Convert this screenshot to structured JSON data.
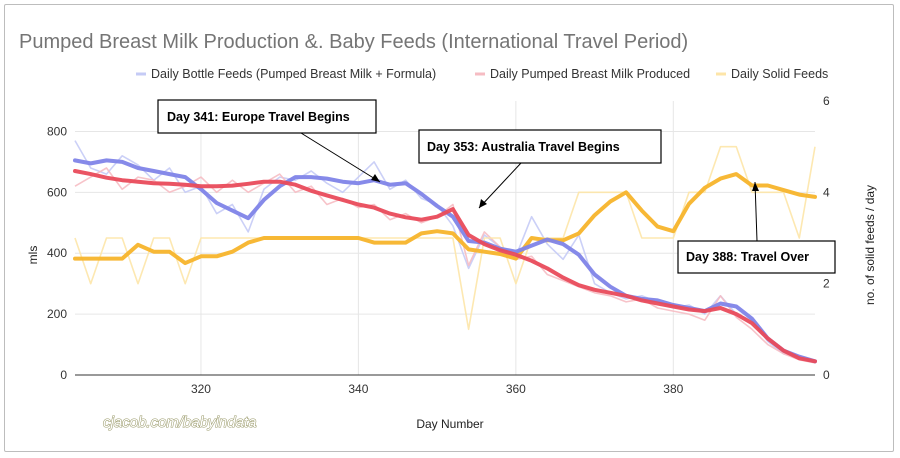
{
  "chart_data": {
    "type": "line",
    "title": "Pumped Breast Milk Production &. Baby Feeds (International Travel Period)",
    "xlabel": "Day Number",
    "ylabel": "mls",
    "y2label": "no. of solid feeds / day",
    "xlim": [
      304,
      398
    ],
    "ylim": [
      0,
      900
    ],
    "y2lim": [
      0,
      6
    ],
    "x_ticks": [
      320,
      340,
      360,
      380
    ],
    "y_ticks": [
      0,
      200,
      400,
      600,
      800
    ],
    "y2_ticks": [
      0,
      2,
      4,
      6
    ],
    "grid": true,
    "legend_position": "top",
    "series": [
      {
        "name": "Daily Bottle Feeds (Pumped Breast Milk + Formula)",
        "color": "#7f84e8",
        "raw_color": "#c5cbf6",
        "axis": "left",
        "x": [
          304,
          306,
          308,
          310,
          312,
          314,
          316,
          318,
          320,
          322,
          324,
          326,
          328,
          330,
          332,
          334,
          336,
          338,
          340,
          342,
          344,
          346,
          348,
          350,
          352,
          354,
          356,
          358,
          360,
          362,
          364,
          366,
          368,
          370,
          372,
          374,
          376,
          378,
          380,
          382,
          384,
          386,
          388,
          390,
          392,
          394,
          396,
          398
        ],
        "smooth": [
          705,
          695,
          705,
          700,
          680,
          670,
          660,
          650,
          610,
          565,
          540,
          515,
          575,
          620,
          650,
          650,
          645,
          635,
          630,
          640,
          625,
          630,
          595,
          555,
          520,
          440,
          435,
          415,
          405,
          425,
          445,
          430,
          395,
          330,
          290,
          260,
          250,
          245,
          230,
          220,
          210,
          235,
          225,
          185,
          120,
          80,
          60,
          45
        ],
        "raw": [
          770,
          680,
          660,
          720,
          690,
          640,
          680,
          600,
          620,
          530,
          560,
          470,
          610,
          650,
          640,
          670,
          630,
          600,
          650,
          700,
          610,
          640,
          580,
          560,
          490,
          350,
          460,
          420,
          390,
          520,
          430,
          380,
          460,
          300,
          270,
          250,
          260,
          240,
          220,
          230,
          200,
          260,
          200,
          180,
          110,
          70,
          60,
          40
        ]
      },
      {
        "name": "Daily Pumped Breast Milk Produced",
        "color": "#e94b5b",
        "raw_color": "#f6bcc3",
        "axis": "left",
        "x": [
          304,
          306,
          308,
          310,
          312,
          314,
          316,
          318,
          320,
          322,
          324,
          326,
          328,
          330,
          332,
          334,
          336,
          338,
          340,
          342,
          344,
          346,
          348,
          350,
          352,
          354,
          356,
          358,
          360,
          362,
          364,
          366,
          368,
          370,
          372,
          374,
          376,
          378,
          380,
          382,
          384,
          386,
          388,
          390,
          392,
          394,
          396,
          398
        ],
        "smooth": [
          670,
          660,
          648,
          640,
          635,
          630,
          628,
          625,
          620,
          620,
          622,
          628,
          635,
          635,
          625,
          605,
          590,
          575,
          560,
          550,
          530,
          518,
          510,
          520,
          545,
          460,
          430,
          410,
          395,
          375,
          350,
          320,
          295,
          280,
          270,
          260,
          245,
          235,
          225,
          215,
          210,
          220,
          200,
          170,
          120,
          80,
          55,
          45
        ],
        "raw": [
          620,
          650,
          680,
          610,
          650,
          640,
          600,
          620,
          650,
          600,
          640,
          600,
          630,
          660,
          600,
          620,
          560,
          580,
          550,
          560,
          510,
          530,
          500,
          520,
          560,
          360,
          470,
          420,
          380,
          390,
          330,
          310,
          290,
          270,
          260,
          240,
          250,
          220,
          210,
          200,
          180,
          260,
          190,
          150,
          100,
          70,
          50,
          40
        ]
      },
      {
        "name": "Daily Solid Feeds",
        "color": "#f7b42b",
        "raw_color": "#fde5a8",
        "axis": "right",
        "x": [
          304,
          306,
          308,
          310,
          312,
          314,
          316,
          318,
          320,
          322,
          324,
          326,
          328,
          330,
          332,
          334,
          336,
          338,
          340,
          342,
          344,
          346,
          348,
          350,
          352,
          354,
          356,
          358,
          360,
          362,
          364,
          366,
          368,
          370,
          372,
          374,
          376,
          378,
          380,
          382,
          384,
          386,
          388,
          390,
          392,
          394,
          396,
          398
        ],
        "smooth": [
          2.55,
          2.55,
          2.55,
          2.55,
          2.85,
          2.7,
          2.7,
          2.45,
          2.6,
          2.6,
          2.7,
          2.9,
          3.0,
          3.0,
          3.0,
          3.0,
          3.0,
          3.0,
          3.0,
          2.9,
          2.9,
          2.9,
          3.1,
          3.15,
          3.1,
          2.75,
          2.7,
          2.65,
          2.55,
          3.0,
          2.95,
          2.95,
          3.1,
          3.5,
          3.8,
          4.0,
          3.6,
          3.25,
          3.15,
          3.75,
          4.1,
          4.3,
          4.4,
          4.15,
          4.15,
          4.05,
          3.95,
          3.9
        ],
        "raw": [
          3.0,
          2.0,
          3.0,
          3.0,
          2.0,
          3.0,
          3.0,
          2.0,
          3.0,
          3.0,
          3.0,
          3.0,
          3.0,
          3.0,
          3.0,
          3.0,
          3.0,
          3.0,
          3.0,
          3.0,
          3.0,
          3.0,
          3.0,
          3.0,
          3.0,
          1.0,
          3.0,
          3.0,
          2.0,
          3.0,
          3.0,
          3.0,
          4.0,
          4.0,
          4.0,
          4.0,
          3.0,
          3.0,
          3.0,
          4.0,
          4.0,
          5.0,
          5.0,
          4.0,
          4.0,
          4.0,
          3.0,
          5.0
        ]
      }
    ],
    "annotations": [
      {
        "text": "Day 341: Europe Travel Begins",
        "x": 341,
        "y": 640
      },
      {
        "text": "Day 353: Australia Travel Begins",
        "x": 353,
        "y": 540
      },
      {
        "text": "Day 388: Travel Over",
        "x": 388,
        "y": 660
      }
    ]
  },
  "watermark": "cjacob.com/babyindata"
}
